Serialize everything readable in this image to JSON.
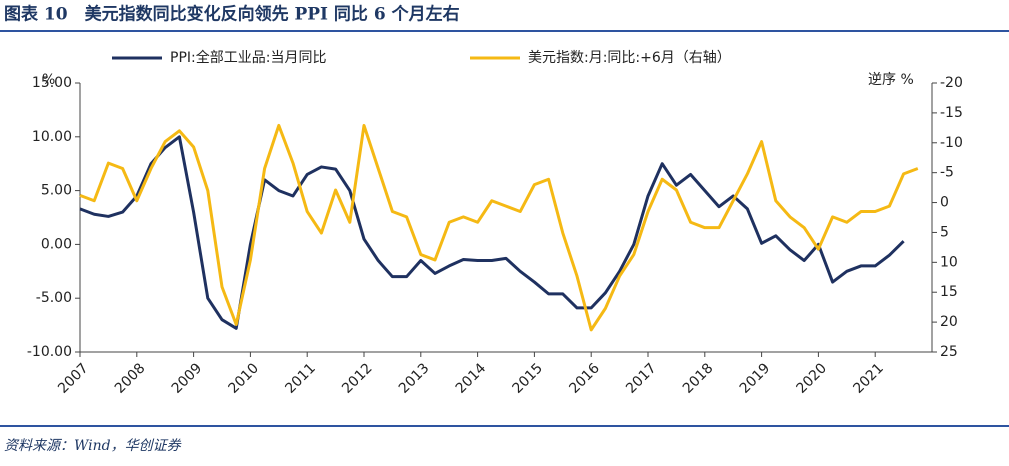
{
  "chart_data": {
    "type": "line",
    "title": "图表 10　美元指数同比变化反向领先 PPI 同比 6 个月左右",
    "source": "资料来源：Wind，华创证券",
    "y_unit": "%",
    "y2_label": "逆序 %",
    "y2_inverted": true,
    "x": [
      2007,
      2007.25,
      2007.5,
      2007.75,
      2008,
      2008.25,
      2008.5,
      2008.75,
      2009,
      2009.25,
      2009.5,
      2009.75,
      2010,
      2010.25,
      2010.5,
      2010.75,
      2011,
      2011.25,
      2011.5,
      2011.75,
      2012,
      2012.25,
      2012.5,
      2012.75,
      2013,
      2013.25,
      2013.5,
      2013.75,
      2014,
      2014.25,
      2014.5,
      2014.75,
      2015,
      2015.25,
      2015.5,
      2015.75,
      2016,
      2016.25,
      2016.5,
      2016.75,
      2017,
      2017.25,
      2017.5,
      2017.75,
      2018,
      2018.25,
      2018.5,
      2018.75,
      2019,
      2019.25,
      2019.5,
      2019.75,
      2020,
      2020.25,
      2020.5,
      2020.75,
      2021,
      2021.25,
      2021.5,
      2021.75
    ],
    "xlim": [
      2007,
      2022
    ],
    "xticks": [
      2007,
      2008,
      2009,
      2010,
      2011,
      2012,
      2013,
      2014,
      2015,
      2016,
      2017,
      2018,
      2019,
      2020,
      2021
    ],
    "ylim": [
      -10,
      15
    ],
    "yticks": [
      {
        "value": -10,
        "label": "-10.00"
      },
      {
        "value": -5,
        "label": "-5.00"
      },
      {
        "value": 0,
        "label": "0.00"
      },
      {
        "value": 5,
        "label": "5.00"
      },
      {
        "value": 10,
        "label": "10.00"
      },
      {
        "value": 15,
        "label": "15.00"
      }
    ],
    "y2lim": [
      25,
      -20
    ],
    "y2ticks": [
      25,
      20,
      15,
      10,
      5,
      0,
      -5,
      -10,
      -15,
      -20
    ],
    "series": [
      {
        "name": "PPI:全部工业品:当月同比",
        "color": "#1f3160",
        "values": [
          3.3,
          2.8,
          2.6,
          3.0,
          4.5,
          7.5,
          9.0,
          10.0,
          3.0,
          -5.0,
          -7.0,
          -7.8,
          0.0,
          6.0,
          5.0,
          4.5,
          6.5,
          7.2,
          7.0,
          5.0,
          0.5,
          -1.5,
          -3.0,
          -3.0,
          -1.5,
          -2.7,
          -2.0,
          -1.4,
          -1.5,
          -1.5,
          -1.3,
          -2.5,
          -3.5,
          -4.6,
          -4.6,
          -5.9,
          -5.9,
          -4.5,
          -2.5,
          0.0,
          4.5,
          7.5,
          5.5,
          6.5,
          5.0,
          3.5,
          4.5,
          3.3,
          0.1,
          0.8,
          -0.5,
          -1.5,
          0.0,
          -3.5,
          -2.5,
          -2.0,
          -2.0,
          -1.0,
          0.3,
          null
        ]
      },
      {
        "name": "美元指数:月:同比:+6月（右轴）",
        "color": "#f5b914",
        "axis": "y2",
        "values": [
          -1.2,
          -0.3,
          -6.6,
          -5.7,
          -0.3,
          -5.7,
          -10.2,
          -12,
          -9.3,
          -2,
          14.1,
          20.4,
          9.6,
          -5.7,
          -12.9,
          -6.6,
          1.5,
          5.1,
          -2.1,
          3.3,
          -12.9,
          -5.7,
          1.5,
          2.4,
          8.7,
          9.6,
          3.3,
          2.4,
          3.3,
          -0.3,
          0.6,
          1.5,
          -3,
          -3.9,
          5.1,
          12.3,
          21.3,
          17.7,
          12.3,
          8.7,
          1.5,
          -3.9,
          -2.1,
          3.3,
          4.2,
          4.2,
          -0.3,
          -4.8,
          -10.2,
          -0.3,
          2.4,
          4.2,
          7.8,
          2.4,
          3.3,
          1.5,
          1.5,
          0.6,
          -4.8,
          -5.7
        ]
      }
    ]
  }
}
